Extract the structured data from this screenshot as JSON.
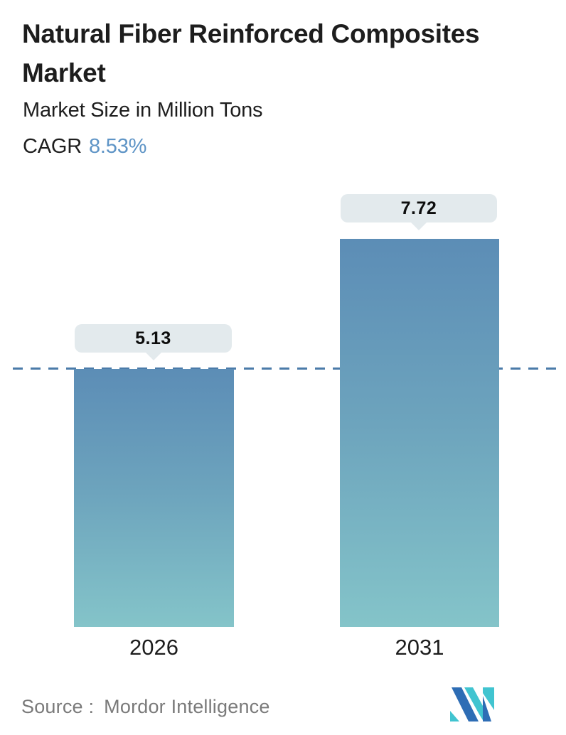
{
  "header": {
    "title": "Natural Fiber Reinforced Composites Market",
    "subtitle": "Market Size in Million Tons",
    "cagr_label": "CAGR",
    "cagr_value": "8.53%"
  },
  "chart_data": {
    "type": "bar",
    "categories": [
      "2026",
      "2031"
    ],
    "values": [
      5.13,
      7.72
    ],
    "data_labels": [
      "5.13",
      "7.72"
    ],
    "title": "Natural Fiber Reinforced Composites Market",
    "subtitle": "Market Size in Million Tons",
    "unit": "Million Tons",
    "cagr_percent": 8.53,
    "xlabel": "",
    "ylabel": "",
    "ylim": [
      0,
      8.6
    ],
    "grid": false,
    "legend": false,
    "reference_line_y": 5.13,
    "reference_line_style": "dashed",
    "colors": {
      "bar_gradient_top": "#5c8db6",
      "bar_gradient_bottom": "#84c4c9",
      "reference_line": "#4b7ba9",
      "label_bubble_bg": "#e3eaed",
      "cagr_value": "#5e94c6",
      "title_text": "#1d1d1d",
      "source_text": "#7a7a7a"
    }
  },
  "footer": {
    "source_label": "Source :",
    "source_value": "Mordor Intelligence",
    "logo": {
      "name": "mordor-intelligence-logo",
      "blue": "#2e6db5",
      "teal": "#41c4d0"
    }
  }
}
